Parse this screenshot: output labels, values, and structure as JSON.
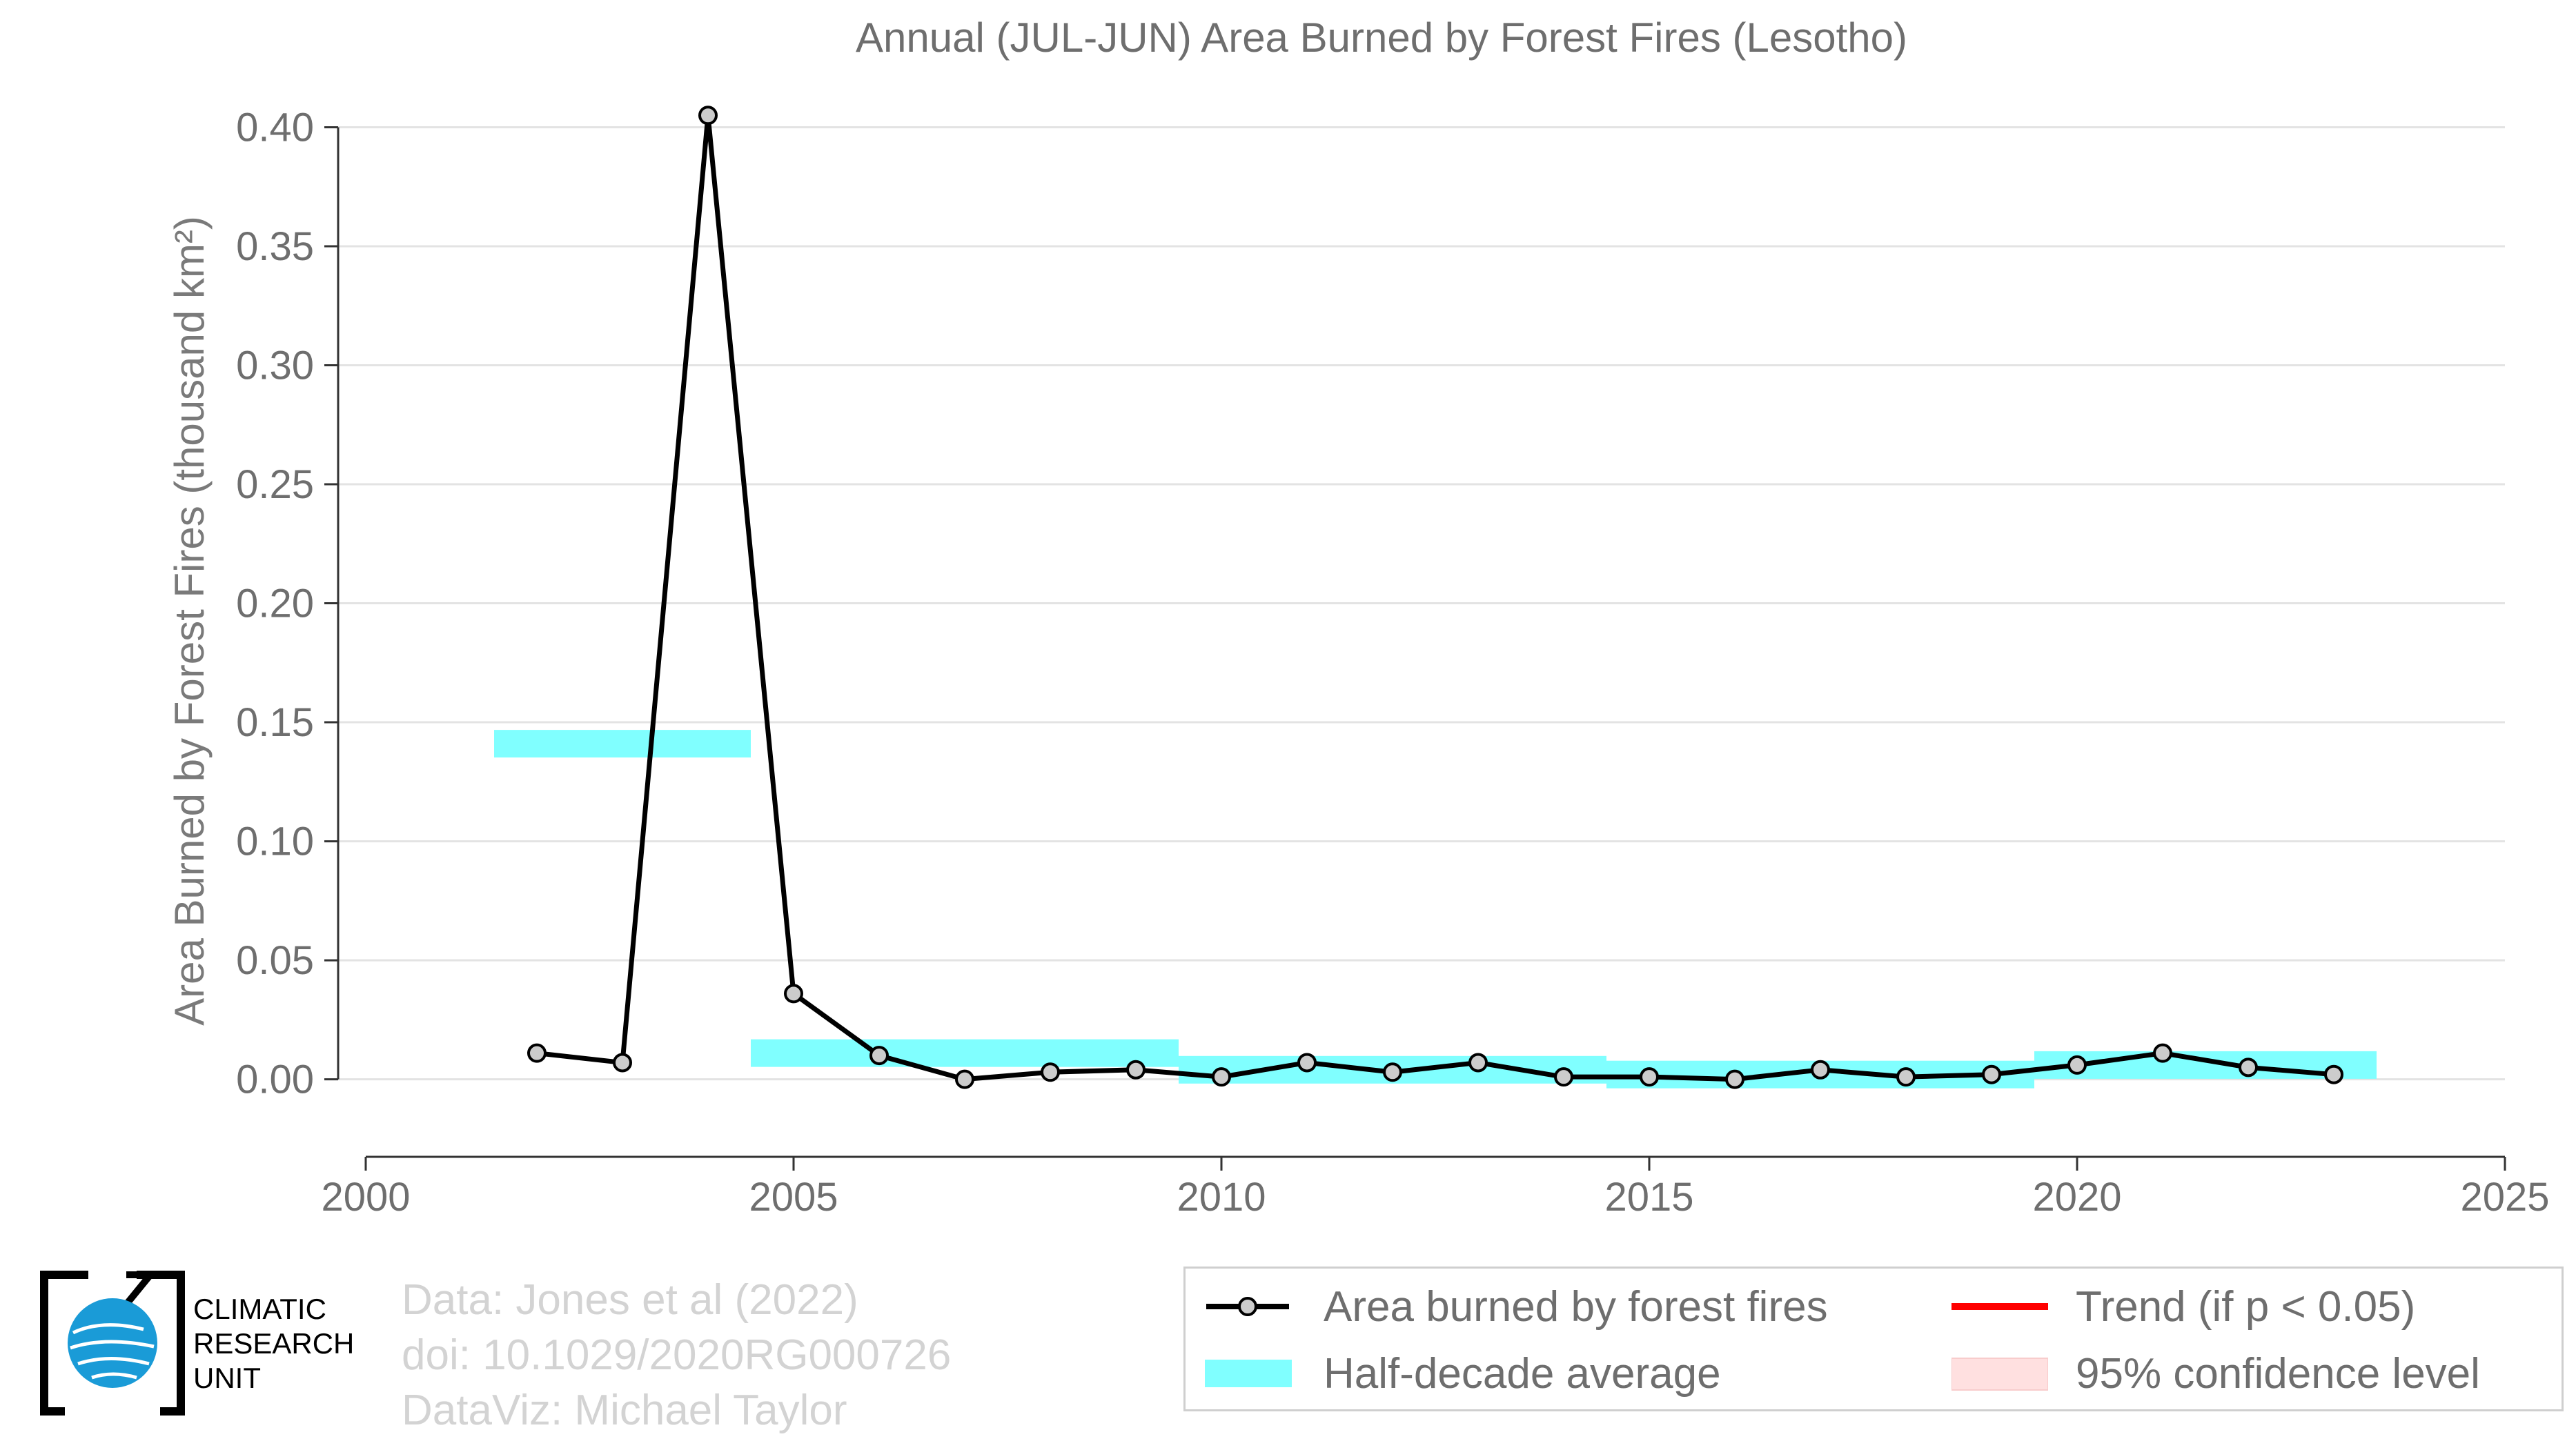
{
  "chart_data": {
    "type": "line",
    "title": "Annual (JUL-JUN) Area Burned by Forest Fires (Lesotho)",
    "xlabel": "",
    "ylabel": "Area Burned by Forest Fires (thousand km²)",
    "xlim": [
      2000,
      2025
    ],
    "ylim": [
      -0.032,
      0.41
    ],
    "xticks": [
      2000,
      2005,
      2010,
      2015,
      2020,
      2025
    ],
    "yticks": [
      0.0,
      0.05,
      0.1,
      0.15,
      0.2,
      0.25,
      0.3,
      0.35,
      0.4
    ],
    "ytick_labels": [
      "0.00",
      "0.05",
      "0.10",
      "0.15",
      "0.20",
      "0.25",
      "0.30",
      "0.35",
      "0.40"
    ],
    "grid": "horizontal",
    "series": [
      {
        "name": "Area burned by forest fires",
        "color": "#000000",
        "x": [
          2002,
          2003,
          2004,
          2005,
          2006,
          2007,
          2008,
          2009,
          2010,
          2011,
          2012,
          2013,
          2014,
          2015,
          2016,
          2017,
          2018,
          2019,
          2020,
          2021,
          2022,
          2023
        ],
        "y": [
          0.011,
          0.007,
          0.405,
          0.036,
          0.01,
          0.0,
          0.003,
          0.004,
          0.001,
          0.007,
          0.003,
          0.007,
          0.001,
          0.001,
          0.0,
          0.004,
          0.001,
          0.002,
          0.006,
          0.011,
          0.005,
          0.002
        ]
      }
    ],
    "half_decade_average": {
      "name": "Half-decade average",
      "color": "#80ffff",
      "segments": [
        {
          "x0": 2001.5,
          "x1": 2004.5,
          "value": 0.141
        },
        {
          "x0": 2004.5,
          "x1": 2009.5,
          "value": 0.011
        },
        {
          "x0": 2009.5,
          "x1": 2014.5,
          "value": 0.004
        },
        {
          "x0": 2014.5,
          "x1": 2019.5,
          "value": 0.002
        },
        {
          "x0": 2019.5,
          "x1": 2023.5,
          "value": 0.006
        }
      ]
    },
    "legend": {
      "placement": "bottom-right",
      "items": [
        {
          "label": "Area burned by forest fires",
          "color": "#000000"
        },
        {
          "label": "Trend (if p < 0.05)",
          "color": "#ff0000"
        },
        {
          "label": "Half-decade average",
          "color": "#80ffff"
        },
        {
          "label": "95% confidence level",
          "color": "#ffe0e0"
        }
      ]
    }
  },
  "credits": {
    "data": "Data: Jones et al (2022)",
    "doi": "doi: 10.1029/2020RG000726",
    "dataviz": "DataViz: Michael Taylor"
  },
  "logo": {
    "line1": "CLIMATIC",
    "line2": "RESEARCH",
    "line3": "UNIT",
    "icon": "globe-icon"
  }
}
